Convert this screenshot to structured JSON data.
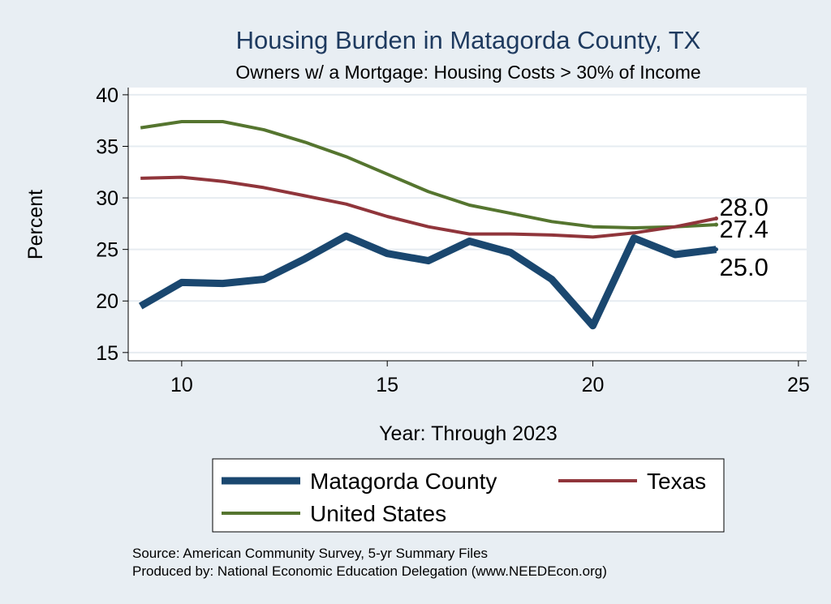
{
  "chart_data": {
    "type": "line",
    "title": "Housing Burden in Matagorda County, TX",
    "subtitle": "Owners w/ a Mortgage: Housing Costs > 30% of Income",
    "xlabel": "Year: Through 2023",
    "ylabel": "Percent",
    "xlim": [
      8.7,
      25.2
    ],
    "ylim": [
      14.2,
      40.7
    ],
    "x_ticks": [
      10,
      15,
      20,
      25
    ],
    "y_ticks": [
      15,
      20,
      25,
      30,
      35,
      40
    ],
    "grid": "horizontal",
    "legend_position": "bottom",
    "x": [
      9,
      10,
      11,
      12,
      13,
      14,
      15,
      16,
      17,
      18,
      19,
      20,
      21,
      22,
      23
    ],
    "series": [
      {
        "name": "Matagorda County",
        "color": "#1a476f",
        "values": [
          19.5,
          21.8,
          21.7,
          22.1,
          24.1,
          26.3,
          24.6,
          23.9,
          25.8,
          24.7,
          22.1,
          17.6,
          26.1,
          24.5,
          25.0
        ],
        "end_label": "25.0"
      },
      {
        "name": "Texas",
        "color": "#90353b",
        "values": [
          31.9,
          32.0,
          31.6,
          31.0,
          30.2,
          29.4,
          28.2,
          27.2,
          26.5,
          26.5,
          26.4,
          26.2,
          26.6,
          27.2,
          28.0
        ],
        "end_label": "28.0"
      },
      {
        "name": "United States",
        "color": "#55752f",
        "values": [
          36.8,
          37.4,
          37.4,
          36.6,
          35.4,
          34.0,
          32.3,
          30.6,
          29.3,
          28.5,
          27.7,
          27.2,
          27.1,
          27.2,
          27.4
        ],
        "end_label": "27.4"
      }
    ]
  },
  "notes": {
    "source": "Source: American Community Survey, 5-yr Summary Files",
    "produced_by": "Produced by: National Economic Education Delegation (www.NEEDEcon.org)"
  }
}
